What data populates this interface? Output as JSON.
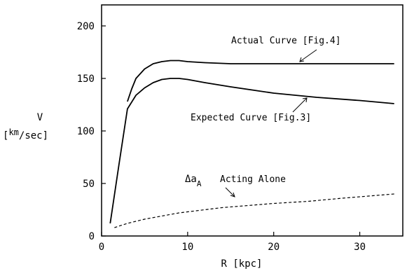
{
  "chart_data": {
    "type": "line",
    "xlabel": "R [kpc]",
    "ylabel_line1": "V",
    "ylabel_line2_prefix": "[",
    "ylabel_line2_num": "km",
    "ylabel_line2_den": "/sec]",
    "xlim": [
      0,
      35
    ],
    "ylim": [
      0,
      220
    ],
    "x_ticks": [
      0,
      10,
      20,
      30
    ],
    "y_ticks": [
      0,
      50,
      100,
      150,
      200
    ],
    "grid": false,
    "series": [
      {
        "name": "Actual Curve [Fig.4]",
        "style": "solid",
        "x": [
          3,
          3.5,
          4,
          5,
          6,
          7,
          8,
          9,
          10,
          12,
          15,
          20,
          25,
          30,
          34
        ],
        "y": [
          128,
          140,
          150,
          159,
          164,
          166,
          167,
          167,
          166,
          165,
          164,
          164,
          164,
          164,
          164
        ]
      },
      {
        "name": "Expected Curve [Fig.3]",
        "style": "solid",
        "x": [
          1,
          2,
          3,
          4,
          5,
          6,
          7,
          8,
          9,
          10,
          12,
          15,
          20,
          25,
          30,
          34
        ],
        "y": [
          12,
          67,
          121,
          134,
          141,
          146,
          149,
          150,
          150,
          149,
          146,
          142,
          136,
          132,
          129,
          126
        ]
      },
      {
        "name": "Acting Alone",
        "style": "dashed",
        "x": [
          1.5,
          3,
          5,
          7,
          9,
          11,
          14,
          17,
          20,
          24,
          28,
          31,
          34
        ],
        "y": [
          8,
          12,
          16,
          19,
          22,
          24,
          27,
          29,
          31,
          33,
          36,
          38,
          40
        ]
      }
    ],
    "annotations": [
      {
        "text": "Actual Curve [Fig.4]"
      },
      {
        "text": "Expected Curve [Fig.3]"
      },
      {
        "delta_symbol": "Δa",
        "subscript": "A",
        "text": "Acting Alone"
      }
    ]
  }
}
